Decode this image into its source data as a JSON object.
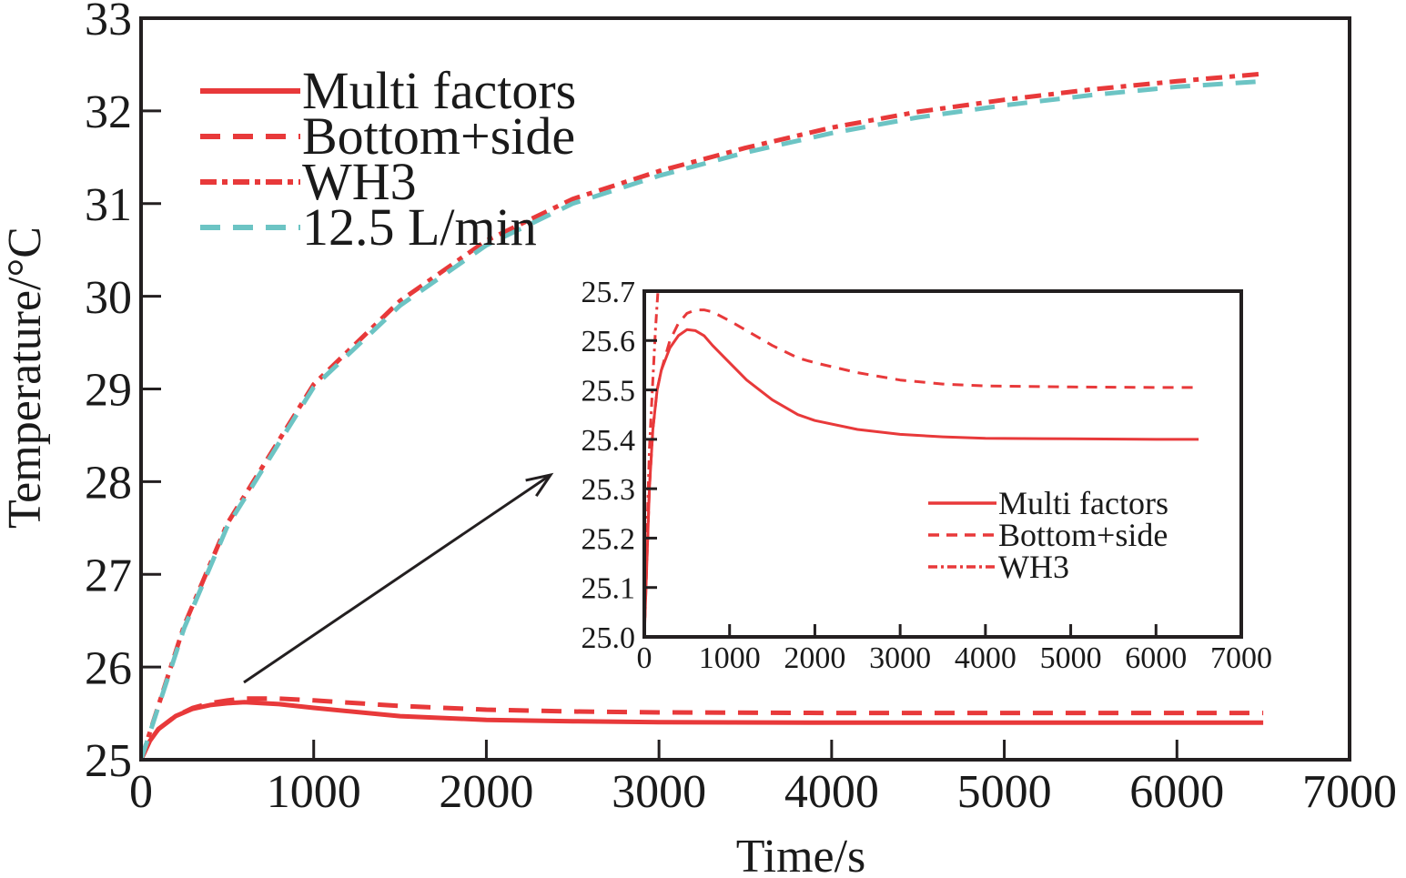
{
  "chart_data": [
    {
      "id": "main",
      "type": "line",
      "title": "",
      "xlabel": "Time/s",
      "ylabel": "Temperature/°C",
      "xlim": [
        0,
        7000
      ],
      "ylim": [
        25,
        33
      ],
      "xticks": [
        0,
        1000,
        2000,
        3000,
        4000,
        5000,
        6000,
        7000
      ],
      "xtick_labels": [
        "0",
        "1000",
        "2000",
        "3000",
        "4000",
        "5000",
        "6000",
        "7000"
      ],
      "yticks": [
        25,
        26,
        27,
        28,
        29,
        30,
        31,
        32,
        33
      ],
      "ytick_labels": [
        "25",
        "26",
        "27",
        "28",
        "29",
        "30",
        "31",
        "32",
        "33"
      ],
      "grid": false,
      "legend_position": "top-left",
      "series": [
        {
          "name": "Multi factors",
          "style": "solid",
          "color": "#e8393a",
          "x": [
            0,
            50,
            100,
            200,
            300,
            400,
            500,
            600,
            800,
            1000,
            1500,
            2000,
            2500,
            3000,
            4000,
            5000,
            6000,
            6500
          ],
          "y": [
            25.0,
            25.2,
            25.33,
            25.47,
            25.55,
            25.59,
            25.61,
            25.62,
            25.6,
            25.56,
            25.47,
            25.43,
            25.415,
            25.405,
            25.4,
            25.4,
            25.4,
            25.4
          ]
        },
        {
          "name": "Bottom+side",
          "style": "dashed",
          "color": "#e8393a",
          "x": [
            0,
            50,
            100,
            200,
            300,
            400,
            500,
            600,
            800,
            1000,
            1500,
            2000,
            2500,
            3000,
            4000,
            5000,
            6000,
            6500
          ],
          "y": [
            25.0,
            25.2,
            25.33,
            25.47,
            25.56,
            25.61,
            25.64,
            25.66,
            25.66,
            25.64,
            25.58,
            25.54,
            25.52,
            25.51,
            25.505,
            25.505,
            25.505,
            25.505
          ]
        },
        {
          "name": "WH3",
          "style": "dashdot",
          "color": "#e8393a",
          "x": [
            0,
            250,
            500,
            1000,
            1500,
            2000,
            2500,
            3000,
            3500,
            4000,
            4500,
            5000,
            5500,
            6000,
            6500
          ],
          "y": [
            25.0,
            26.45,
            27.55,
            29.05,
            29.95,
            30.6,
            31.05,
            31.35,
            31.6,
            31.82,
            31.99,
            32.12,
            32.23,
            32.32,
            32.4
          ]
        },
        {
          "name": "12.5 L/min",
          "style": "dashed",
          "color": "#6cc4c4",
          "x": [
            0,
            250,
            500,
            1000,
            1500,
            2000,
            2500,
            3000,
            3500,
            4000,
            4500,
            5000,
            5500,
            6000,
            6500
          ],
          "y": [
            25.0,
            26.42,
            27.52,
            29.02,
            29.9,
            30.55,
            31.0,
            31.3,
            31.55,
            31.76,
            31.93,
            32.06,
            32.17,
            32.26,
            32.32
          ]
        }
      ],
      "annotations": [
        {
          "type": "arrow",
          "from": [
            600,
            25.8
          ],
          "to": [
            2400,
            28.1
          ],
          "color": "#231f20",
          "meaning": "points to zoomed inset"
        }
      ]
    },
    {
      "id": "inset",
      "type": "line",
      "title": "",
      "xlabel": "",
      "ylabel": "",
      "xlim": [
        0,
        7000
      ],
      "ylim": [
        25.0,
        25.7
      ],
      "xticks": [
        0,
        1000,
        2000,
        3000,
        4000,
        5000,
        6000,
        7000
      ],
      "xtick_labels": [
        "0",
        "1000",
        "2000",
        "3000",
        "4000",
        "5000",
        "6000",
        "7000"
      ],
      "yticks": [
        25.0,
        25.1,
        25.2,
        25.3,
        25.4,
        25.5,
        25.6,
        25.7
      ],
      "ytick_labels": [
        "25.0",
        "25.1",
        "25.2",
        "25.3",
        "25.4",
        "25.5",
        "25.6",
        "25.7"
      ],
      "grid": false,
      "legend_position": "bottom-right",
      "series": [
        {
          "name": "Multi factors",
          "style": "solid",
          "color": "#e8393a",
          "x": [
            0,
            30,
            60,
            100,
            150,
            200,
            300,
            400,
            500,
            600,
            700,
            800,
            1000,
            1200,
            1500,
            1800,
            2000,
            2500,
            3000,
            3500,
            4000,
            5000,
            6000,
            6500
          ],
          "y": [
            25.0,
            25.15,
            25.3,
            25.42,
            25.5,
            25.54,
            25.585,
            25.61,
            25.622,
            25.62,
            25.61,
            25.59,
            25.555,
            25.52,
            25.48,
            25.45,
            25.438,
            25.42,
            25.41,
            25.405,
            25.402,
            25.401,
            25.4,
            25.4
          ]
        },
        {
          "name": "Bottom+side",
          "style": "dashed",
          "color": "#e8393a",
          "x": [
            0,
            30,
            60,
            100,
            150,
            200,
            300,
            400,
            500,
            600,
            700,
            800,
            1000,
            1200,
            1500,
            1800,
            2000,
            2500,
            3000,
            3500,
            4000,
            5000,
            6000,
            6500
          ],
          "y": [
            25.0,
            25.15,
            25.3,
            25.42,
            25.5,
            25.54,
            25.6,
            25.635,
            25.655,
            25.662,
            25.662,
            25.658,
            25.64,
            25.62,
            25.59,
            25.565,
            25.555,
            25.535,
            25.52,
            25.512,
            25.508,
            25.506,
            25.505,
            25.505
          ]
        },
        {
          "name": "WH3",
          "style": "dashdot",
          "color": "#e8393a",
          "x": [
            0,
            30,
            60,
            100,
            130,
            160
          ],
          "y": [
            25.0,
            25.2,
            25.38,
            25.52,
            25.62,
            25.7
          ]
        }
      ]
    }
  ],
  "legend_main": {
    "items": [
      "Multi factors",
      "Bottom+side",
      "WH3",
      "12.5 L/min"
    ]
  },
  "legend_inset": {
    "items": [
      "Multi factors",
      "Bottom+side",
      "WH3"
    ]
  },
  "colors": {
    "red": "#e8393a",
    "cyan": "#6cc4c4",
    "axis": "#231f20"
  }
}
